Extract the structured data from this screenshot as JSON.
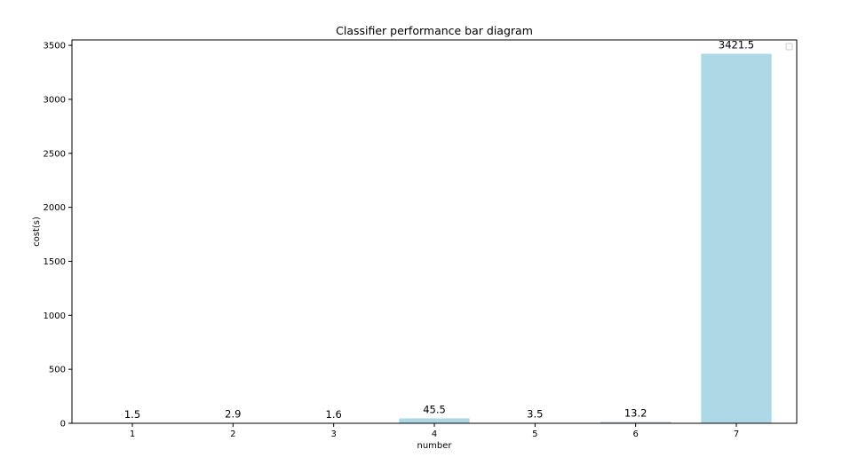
{
  "chart_data": {
    "type": "bar",
    "title": "Classifier performance bar diagram",
    "xlabel": "number",
    "ylabel": "cost(s)",
    "categories": [
      "1",
      "2",
      "3",
      "4",
      "5",
      "6",
      "7"
    ],
    "values": [
      1.5,
      2.9,
      1.6,
      45.5,
      3.5,
      13.2,
      3421.5
    ],
    "value_labels": [
      "1.5",
      "2.9",
      "1.6",
      "45.5",
      "3.5",
      "13.2",
      "3421.5"
    ],
    "yticks": [
      0,
      500,
      1000,
      1500,
      2000,
      2500,
      3000,
      3500
    ],
    "ylim": [
      0,
      3550
    ],
    "bar_color": "#add8e6",
    "grid": false,
    "legend": "top-right (empty)"
  }
}
